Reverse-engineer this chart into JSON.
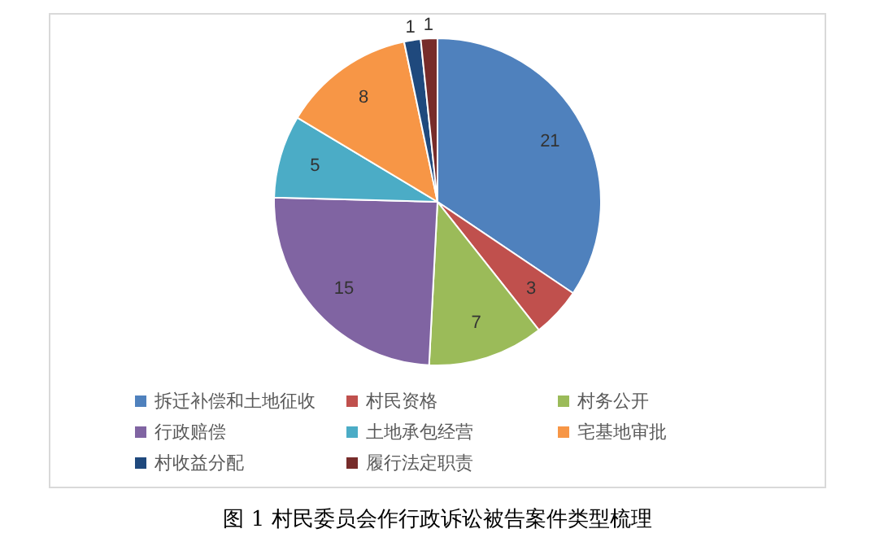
{
  "chart_data": {
    "type": "pie",
    "title": "图 1 村民委员会作行政诉讼被告案件类型梳理",
    "categories": [
      "拆迁补偿和土地征收",
      "村民资格",
      "村务公开",
      "行政赔偿",
      "土地承包经营",
      "宅基地审批",
      "村收益分配",
      "履行法定职责"
    ],
    "values": [
      21,
      3,
      7,
      15,
      5,
      8,
      1,
      1
    ],
    "colors": [
      "#4f81bd",
      "#c0504d",
      "#9bbb59",
      "#8064a2",
      "#4bacc6",
      "#f79646",
      "#1f497d",
      "#772c2a"
    ],
    "data_labels": true,
    "legend": "bottom"
  }
}
